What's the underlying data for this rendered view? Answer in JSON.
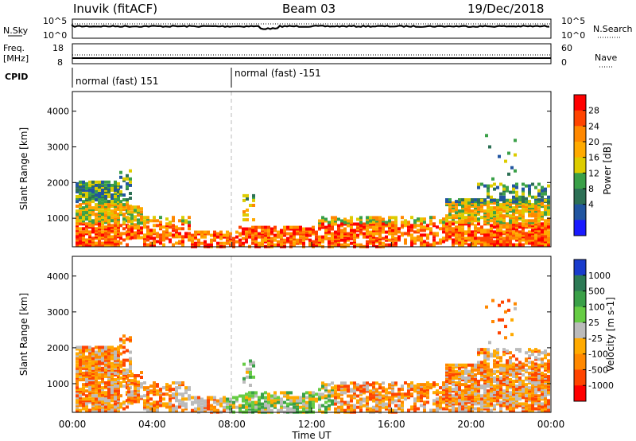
{
  "header": {
    "title": "Inuvik (fitACF)",
    "beam": "Beam 03",
    "date": "19/Dec/2018"
  },
  "noise_panel": {
    "left_label": "N.Sky",
    "right_label": "N.Search",
    "left_ticks": [
      "10^5",
      "10^0"
    ],
    "right_ticks": [
      "10^5",
      "10^0"
    ],
    "right_legend_line": "dotted"
  },
  "freq_panel": {
    "left_label_line1": "Freq.",
    "left_label_line2": "[MHz]",
    "right_label": "Nave",
    "left_ticks": [
      "18",
      "8"
    ],
    "right_ticks": [
      "60",
      "0"
    ]
  },
  "cpid_panel": {
    "label": "CPID",
    "segments": [
      "normal (fast) 151",
      "normal (fast) -151"
    ]
  },
  "chart_data": [
    {
      "type": "heatmap",
      "name": "power",
      "ylabel": "Slant Range [km]",
      "yticks": [
        "1000",
        "2000",
        "3000",
        "4000"
      ],
      "ylim": [
        200,
        4550
      ],
      "colorbar": {
        "label": "Power [dB]",
        "ticks": [
          "28",
          "24",
          "20",
          "16",
          "12",
          "8",
          "4"
        ],
        "colors": [
          "#ff0000",
          "#ff4400",
          "#ff8800",
          "#ffaa00",
          "#ddcc00",
          "#3aa048",
          "#2d7055",
          "#2155a0",
          "#1a1aff"
        ]
      }
    },
    {
      "type": "heatmap",
      "name": "velocity",
      "ylabel": "Slant Range [km]",
      "yticks": [
        "1000",
        "2000",
        "3000",
        "4000"
      ],
      "ylim": [
        200,
        4550
      ],
      "xlabel": "Time UT",
      "xticks": [
        "00:00",
        "04:00",
        "08:00",
        "12:00",
        "16:00",
        "20:00",
        "00:00"
      ],
      "colorbar": {
        "label": "Velocity [m s-1]",
        "ticks": [
          "1000",
          "500",
          "100",
          "25",
          "-25",
          "-100",
          "-500",
          "-1000"
        ],
        "colors": [
          "#1a3ccc",
          "#2d7a55",
          "#3aa048",
          "#66cc44",
          "#bbbbbb",
          "#ffaa00",
          "#ff8800",
          "#ff4400",
          "#ff0000"
        ]
      }
    }
  ]
}
